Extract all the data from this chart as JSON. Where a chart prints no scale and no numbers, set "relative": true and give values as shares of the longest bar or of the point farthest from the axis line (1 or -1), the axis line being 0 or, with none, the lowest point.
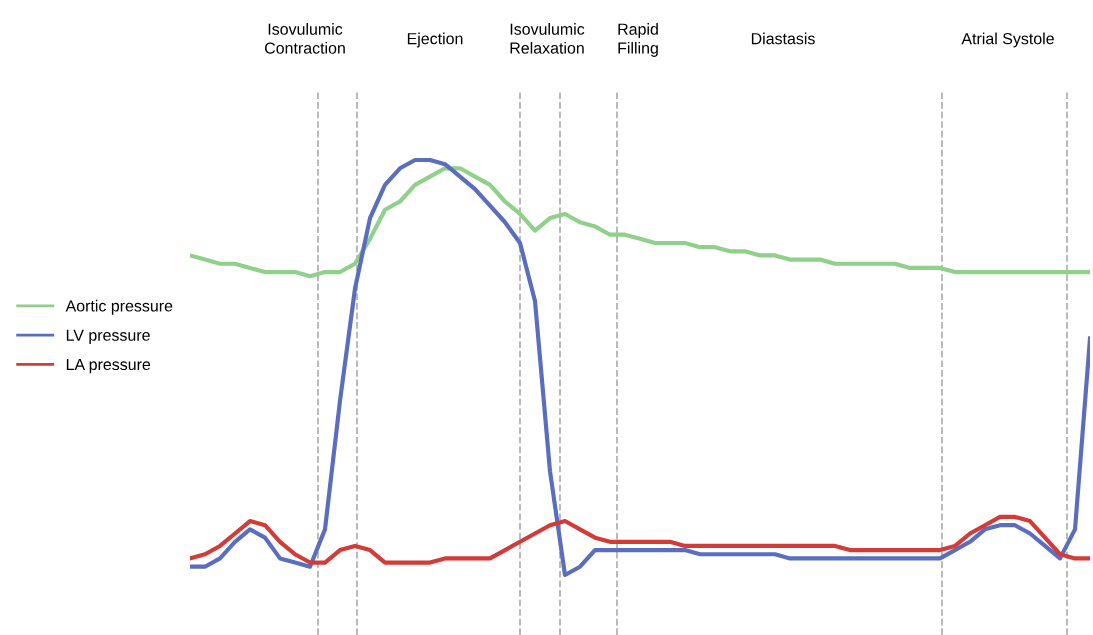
{
  "chart_data": {
    "type": "line",
    "relative": true,
    "grid": "x",
    "legend": "left",
    "marker": "none",
    "line_style": "solid",
    "categories": [
      null,
      null,
      null,
      null,
      null,
      null,
      null,
      null,
      null,
      null,
      null,
      null,
      null,
      null,
      null,
      null,
      null,
      null,
      null,
      null,
      null,
      null,
      null,
      null,
      null,
      null,
      null,
      null,
      null,
      null,
      null,
      null,
      null,
      null,
      null,
      null,
      null,
      null,
      null,
      null,
      null,
      null,
      null,
      null,
      null,
      null,
      null,
      null,
      null,
      null,
      null,
      null,
      null,
      null,
      null,
      null,
      null,
      null,
      null,
      null,
      null
    ],
    "series": [
      {
        "name": "Aortic pressure",
        "color": "#8fd08a",
        "values": [
          0.77,
          0.76,
          0.75,
          0.75,
          0.74,
          0.73,
          0.73,
          0.73,
          0.72,
          0.73,
          0.73,
          0.75,
          0.81,
          0.88,
          0.9,
          0.94,
          0.96,
          0.98,
          0.98,
          0.96,
          0.94,
          0.9,
          0.87,
          0.83,
          0.86,
          0.87,
          0.85,
          0.84,
          0.82,
          0.82,
          0.81,
          0.8,
          0.8,
          0.8,
          0.79,
          0.79,
          0.78,
          0.78,
          0.77,
          0.77,
          0.76,
          0.76,
          0.76,
          0.75,
          0.75,
          0.75,
          0.75,
          0.75,
          0.74,
          0.74,
          0.74,
          0.73,
          0.73,
          0.73,
          0.73,
          0.73,
          0.73,
          0.73,
          0.73,
          0.73,
          0.73
        ]
      },
      {
        "name": "LV pressure",
        "color": "#5b6dbf",
        "values": [
          0.02,
          0.02,
          0.04,
          0.08,
          0.11,
          0.09,
          0.04,
          0.03,
          0.02,
          0.11,
          0.42,
          0.69,
          0.86,
          0.94,
          0.98,
          1.0,
          1.0,
          0.99,
          0.96,
          0.93,
          0.89,
          0.85,
          0.8,
          0.66,
          0.25,
          0.0,
          0.02,
          0.06,
          0.06,
          0.06,
          0.06,
          0.06,
          0.06,
          0.06,
          0.05,
          0.05,
          0.05,
          0.05,
          0.05,
          0.05,
          0.04,
          0.04,
          0.04,
          0.04,
          0.04,
          0.04,
          0.04,
          0.04,
          0.04,
          0.04,
          0.04,
          0.06,
          0.08,
          0.11,
          0.12,
          0.12,
          0.1,
          0.07,
          0.04,
          0.11,
          0.57
        ]
      },
      {
        "name": "LA pressure",
        "color": "#d23b37",
        "values": [
          0.04,
          0.05,
          0.07,
          0.1,
          0.13,
          0.12,
          0.08,
          0.05,
          0.03,
          0.03,
          0.06,
          0.07,
          0.06,
          0.03,
          0.03,
          0.03,
          0.03,
          0.04,
          0.04,
          0.04,
          0.04,
          0.06,
          0.08,
          0.1,
          0.12,
          0.13,
          0.11,
          0.09,
          0.08,
          0.08,
          0.08,
          0.08,
          0.08,
          0.07,
          0.07,
          0.07,
          0.07,
          0.07,
          0.07,
          0.07,
          0.07,
          0.07,
          0.07,
          0.07,
          0.06,
          0.06,
          0.06,
          0.06,
          0.06,
          0.06,
          0.06,
          0.07,
          0.1,
          0.12,
          0.14,
          0.14,
          0.13,
          0.09,
          0.05,
          0.04,
          0.04
        ]
      }
    ],
    "annotations": [
      "Isovulumic\nContraction",
      "Ejection",
      "Isovulumic\nRelaxation",
      "Rapid\nFilling",
      "Diastasis",
      "Atrial Systole"
    ]
  }
}
